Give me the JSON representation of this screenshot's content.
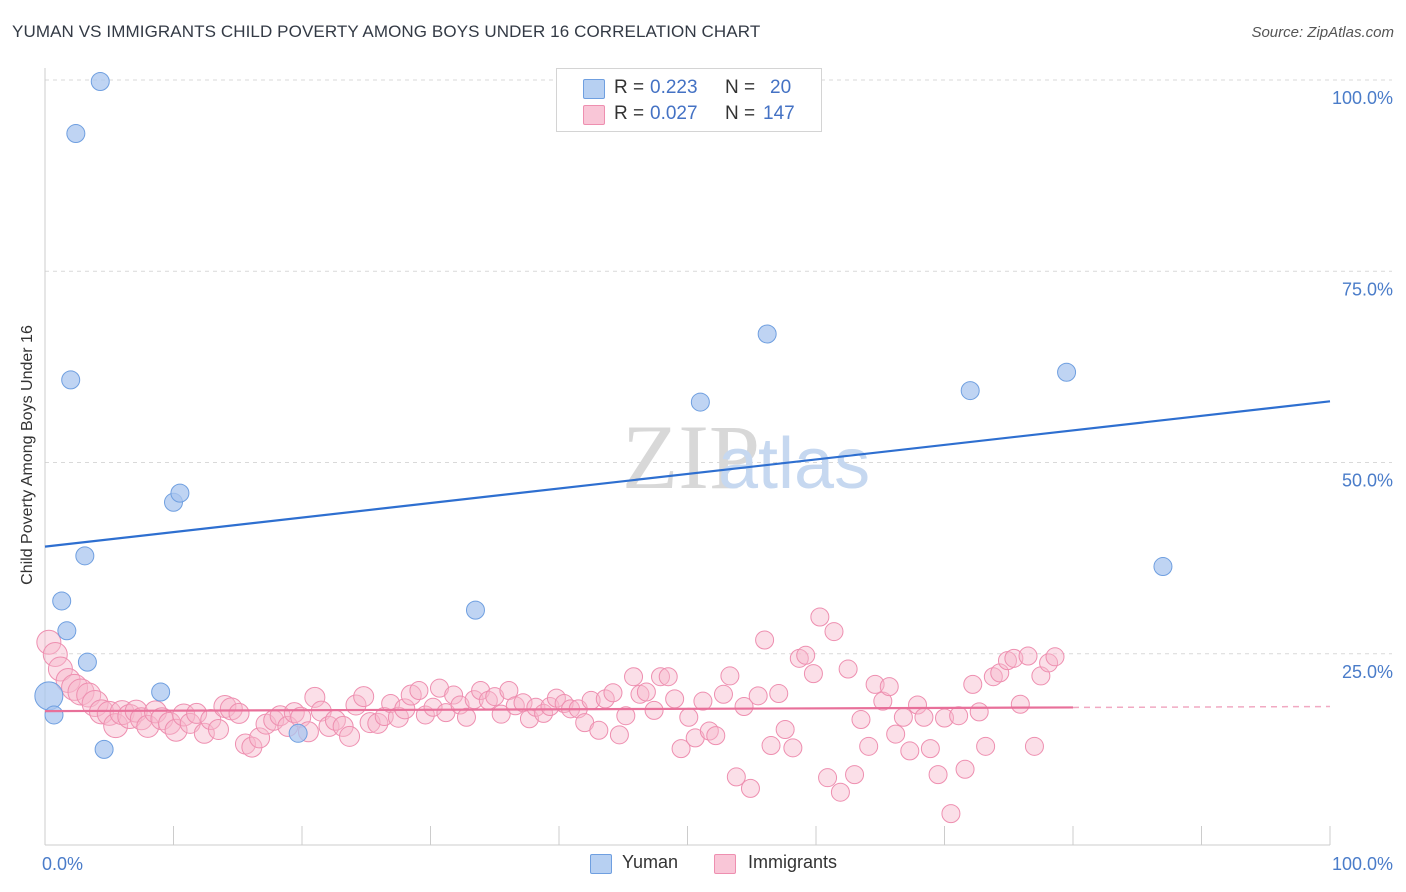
{
  "title": "YUMAN VS IMMIGRANTS CHILD POVERTY AMONG BOYS UNDER 16 CORRELATION CHART",
  "source": "Source: ZipAtlas.com",
  "watermark": {
    "zip": "ZIP",
    "atlas": "atlas"
  },
  "colors": {
    "blue_fill": "#a9c6ef",
    "blue_stroke": "#6f9fe0",
    "blue_line": "#2e6fd0",
    "pink_fill": "#f6b8cd",
    "pink_stroke": "#ee8fb0",
    "pink_line": "#e8709a",
    "tick_text": "#4a7cc9",
    "grid": "#d9d9d9"
  },
  "legend": {
    "rows": [
      {
        "r_label": "R =",
        "r_value": "0.223",
        "n_label": "N =",
        "n_value": "20"
      },
      {
        "r_label": "R =",
        "r_value": "0.027",
        "n_label": "N =",
        "n_value": "147"
      }
    ]
  },
  "bottom_legend": {
    "series1": "Yuman",
    "series2": "Immigrants"
  },
  "chart_data": {
    "type": "scatter",
    "title": "YUMAN VS IMMIGRANTS CHILD POVERTY AMONG BOYS UNDER 16 CORRELATION CHART",
    "xlabel": "",
    "ylabel": "Child Poverty Among Boys Under 16",
    "xlim": [
      0,
      100
    ],
    "ylim": [
      0,
      100
    ],
    "x_tick_labels": [
      "0.0%",
      "100.0%"
    ],
    "y_ticks": [
      25,
      50,
      75,
      100
    ],
    "y_tick_labels": [
      "25.0%",
      "50.0%",
      "75.0%",
      "100.0%"
    ],
    "grid": true,
    "series": [
      {
        "name": "Yuman",
        "r": 0.223,
        "n": 20,
        "trend": {
          "x": [
            0,
            100
          ],
          "y": [
            39,
            58
          ],
          "dashed_from": null
        },
        "points": [
          [
            0.3,
            19.5,
            14
          ],
          [
            0.7,
            17,
            9
          ],
          [
            1.3,
            31.9,
            9
          ],
          [
            1.7,
            28,
            9
          ],
          [
            2,
            60.8,
            9
          ],
          [
            2.4,
            93,
            9
          ],
          [
            3.1,
            37.8,
            9
          ],
          [
            3.3,
            23.9,
            9
          ],
          [
            4.3,
            99.8,
            9
          ],
          [
            4.6,
            12.5,
            9
          ],
          [
            9,
            20,
            9
          ],
          [
            10,
            44.8,
            9
          ],
          [
            10.5,
            46,
            9
          ],
          [
            19.7,
            14.6,
            9
          ],
          [
            33.5,
            30.7,
            9
          ],
          [
            51,
            57.9,
            9
          ],
          [
            56.2,
            66.8,
            9
          ],
          [
            72,
            59.4,
            9
          ],
          [
            79.5,
            61.8,
            9
          ],
          [
            87,
            36.4,
            9
          ]
        ]
      },
      {
        "name": "Immigrants",
        "r": 0.027,
        "n": 147,
        "trend": {
          "x": [
            0,
            100
          ],
          "y": [
            17.5,
            18.1
          ],
          "dashed_from": 80
        },
        "points": [
          [
            0.3,
            26.5,
            12
          ],
          [
            0.8,
            24.9,
            12
          ],
          [
            1.2,
            23,
            12
          ],
          [
            1.8,
            21.5,
            12
          ],
          [
            2.3,
            20.6,
            13
          ],
          [
            2.8,
            20,
            13
          ],
          [
            3.4,
            19.6,
            12
          ],
          [
            3.9,
            18.5,
            13
          ],
          [
            4.4,
            17.4,
            12
          ],
          [
            5,
            17.2,
            12
          ],
          [
            5.5,
            15.6,
            12
          ],
          [
            6,
            17.3,
            12
          ],
          [
            6.6,
            16.8,
            12
          ],
          [
            7.1,
            17.5,
            11
          ],
          [
            7.5,
            16.5,
            11
          ],
          [
            8,
            15.5,
            11
          ],
          [
            8.6,
            17.4,
            11
          ],
          [
            9.1,
            16.5,
            11
          ],
          [
            9.7,
            15.9,
            11
          ],
          [
            10.2,
            15,
            11
          ],
          [
            10.8,
            17,
            11
          ],
          [
            11.3,
            15.9,
            10
          ],
          [
            11.8,
            17.2,
            10
          ],
          [
            12.4,
            14.6,
            10
          ],
          [
            12.9,
            16.4,
            10
          ],
          [
            13.5,
            15.1,
            10
          ],
          [
            14,
            18.1,
            11
          ],
          [
            14.5,
            17.8,
            11
          ],
          [
            15.1,
            17.2,
            10
          ],
          [
            15.6,
            13.2,
            10
          ],
          [
            16.1,
            12.8,
            10
          ],
          [
            16.7,
            14,
            10
          ],
          [
            17.2,
            15.8,
            10
          ],
          [
            17.8,
            16.3,
            10
          ],
          [
            18.3,
            16.9,
            10
          ],
          [
            18.9,
            15.5,
            10
          ],
          [
            19.4,
            17.3,
            10
          ],
          [
            19.9,
            16.7,
            10
          ],
          [
            20.5,
            14.8,
            10
          ],
          [
            21,
            19.3,
            10
          ],
          [
            21.5,
            17.5,
            10
          ],
          [
            22.1,
            15.5,
            10
          ],
          [
            22.6,
            16.3,
            10
          ],
          [
            23.2,
            15.5,
            10
          ],
          [
            23.7,
            14.2,
            10
          ],
          [
            24.2,
            18.3,
            10
          ],
          [
            24.8,
            19.4,
            10
          ],
          [
            25.3,
            16,
            10
          ],
          [
            25.9,
            15.9,
            10
          ],
          [
            26.4,
            16.8,
            9
          ],
          [
            26.9,
            18.5,
            9
          ],
          [
            27.5,
            16.7,
            10
          ],
          [
            28,
            17.8,
            10
          ],
          [
            28.5,
            19.6,
            10
          ],
          [
            29.1,
            20.2,
            9
          ],
          [
            29.6,
            17,
            9
          ],
          [
            30.2,
            18,
            9
          ],
          [
            30.7,
            20.5,
            9
          ],
          [
            31.2,
            17.3,
            9
          ],
          [
            31.8,
            19.6,
            9
          ],
          [
            32.3,
            18.3,
            9
          ],
          [
            32.8,
            16.7,
            9
          ],
          [
            33.4,
            19,
            9
          ],
          [
            33.9,
            20.2,
            9
          ],
          [
            34.5,
            18.9,
            9
          ],
          [
            35,
            19.4,
            9
          ],
          [
            35.5,
            17.1,
            9
          ],
          [
            36.1,
            20.2,
            9
          ],
          [
            36.6,
            18.2,
            9
          ],
          [
            37.2,
            18.6,
            9
          ],
          [
            37.7,
            16.5,
            9
          ],
          [
            38.2,
            18,
            9
          ],
          [
            38.8,
            17.2,
            9
          ],
          [
            39.3,
            18.1,
            9
          ],
          [
            39.8,
            19.2,
            9
          ],
          [
            40.4,
            18.5,
            9
          ],
          [
            40.9,
            17.8,
            9
          ],
          [
            41.5,
            17.8,
            9
          ],
          [
            42,
            16,
            9
          ],
          [
            42.5,
            18.9,
            9
          ],
          [
            43.1,
            15,
            9
          ],
          [
            43.6,
            19.1,
            9
          ],
          [
            44.2,
            19.9,
            9
          ],
          [
            44.7,
            14.4,
            9
          ],
          [
            45.2,
            16.9,
            9
          ],
          [
            45.8,
            22,
            9
          ],
          [
            46.3,
            19.7,
            9
          ],
          [
            46.8,
            20,
            9
          ],
          [
            47.4,
            17.6,
            9
          ],
          [
            47.9,
            22,
            9
          ],
          [
            48.5,
            22,
            9
          ],
          [
            49,
            19.1,
            9
          ],
          [
            49.5,
            12.6,
            9
          ],
          [
            50.1,
            16.7,
            9
          ],
          [
            50.6,
            14,
            9
          ],
          [
            51.2,
            18.8,
            9
          ],
          [
            51.7,
            14.9,
            9
          ],
          [
            52.2,
            14.3,
            9
          ],
          [
            52.8,
            19.7,
            9
          ],
          [
            53.3,
            22.1,
            9
          ],
          [
            53.8,
            8.9,
            9
          ],
          [
            54.4,
            18.1,
            9
          ],
          [
            54.9,
            7.4,
            9
          ],
          [
            55.5,
            19.5,
            9
          ],
          [
            56,
            26.8,
            9
          ],
          [
            56.5,
            13,
            9
          ],
          [
            57.1,
            19.8,
            9
          ],
          [
            57.6,
            15.1,
            9
          ],
          [
            58.2,
            12.7,
            9
          ],
          [
            58.7,
            24.4,
            9
          ],
          [
            59.2,
            24.8,
            9
          ],
          [
            59.8,
            22.4,
            9
          ],
          [
            60.3,
            29.8,
            9
          ],
          [
            60.9,
            8.8,
            9
          ],
          [
            61.4,
            27.9,
            9
          ],
          [
            61.9,
            6.9,
            9
          ],
          [
            62.5,
            23,
            9
          ],
          [
            63,
            9.2,
            9
          ],
          [
            63.5,
            16.4,
            9
          ],
          [
            64.1,
            12.9,
            9
          ],
          [
            64.6,
            21,
            9
          ],
          [
            65.2,
            18.8,
            9
          ],
          [
            65.7,
            20.7,
            9
          ],
          [
            66.2,
            14.5,
            9
          ],
          [
            66.8,
            16.7,
            9
          ],
          [
            67.3,
            12.3,
            9
          ],
          [
            67.9,
            18.3,
            9
          ],
          [
            68.4,
            16.7,
            9
          ],
          [
            68.9,
            12.6,
            9
          ],
          [
            69.5,
            9.2,
            9
          ],
          [
            70,
            16.6,
            9
          ],
          [
            70.5,
            4.1,
            9
          ],
          [
            71.1,
            16.9,
            9
          ],
          [
            71.6,
            9.9,
            9
          ],
          [
            72.2,
            21,
            9
          ],
          [
            72.7,
            17.4,
            9
          ],
          [
            73.2,
            12.9,
            9
          ],
          [
            73.8,
            22,
            9
          ],
          [
            74.3,
            22.5,
            9
          ],
          [
            74.9,
            24.1,
            9
          ],
          [
            75.4,
            24.4,
            9
          ],
          [
            75.9,
            18.4,
            9
          ],
          [
            76.5,
            24.7,
            9
          ],
          [
            77,
            12.9,
            9
          ],
          [
            77.5,
            22.1,
            9
          ],
          [
            78.1,
            23.8,
            9
          ],
          [
            78.6,
            24.6,
            9
          ]
        ]
      }
    ]
  }
}
